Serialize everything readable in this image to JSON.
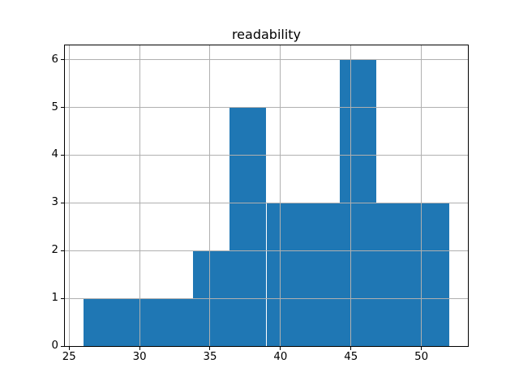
{
  "chart_data": {
    "type": "bar",
    "subtype": "histogram",
    "title": "readability",
    "bin_edges": [
      26.0,
      28.6,
      31.2,
      33.8,
      36.4,
      39.0,
      41.6,
      44.2,
      46.8,
      49.4,
      52.0
    ],
    "counts": [
      1,
      1,
      1,
      2,
      5,
      3,
      3,
      6,
      3,
      3
    ],
    "x_ticks": [
      25,
      30,
      35,
      40,
      45,
      50
    ],
    "y_ticks": [
      0,
      1,
      2,
      3,
      4,
      5,
      6
    ],
    "xlim": [
      24.7,
      53.3
    ],
    "ylim": [
      0,
      6.3
    ],
    "xlabel": "",
    "ylabel": "",
    "grid": true,
    "grid_above_bars": true,
    "legend": "none",
    "bar_color": "#1f77b4",
    "grid_color": "#b0b0b0",
    "axis_color": "#000000",
    "text_color": "#000000",
    "background_color": "#ffffff"
  }
}
